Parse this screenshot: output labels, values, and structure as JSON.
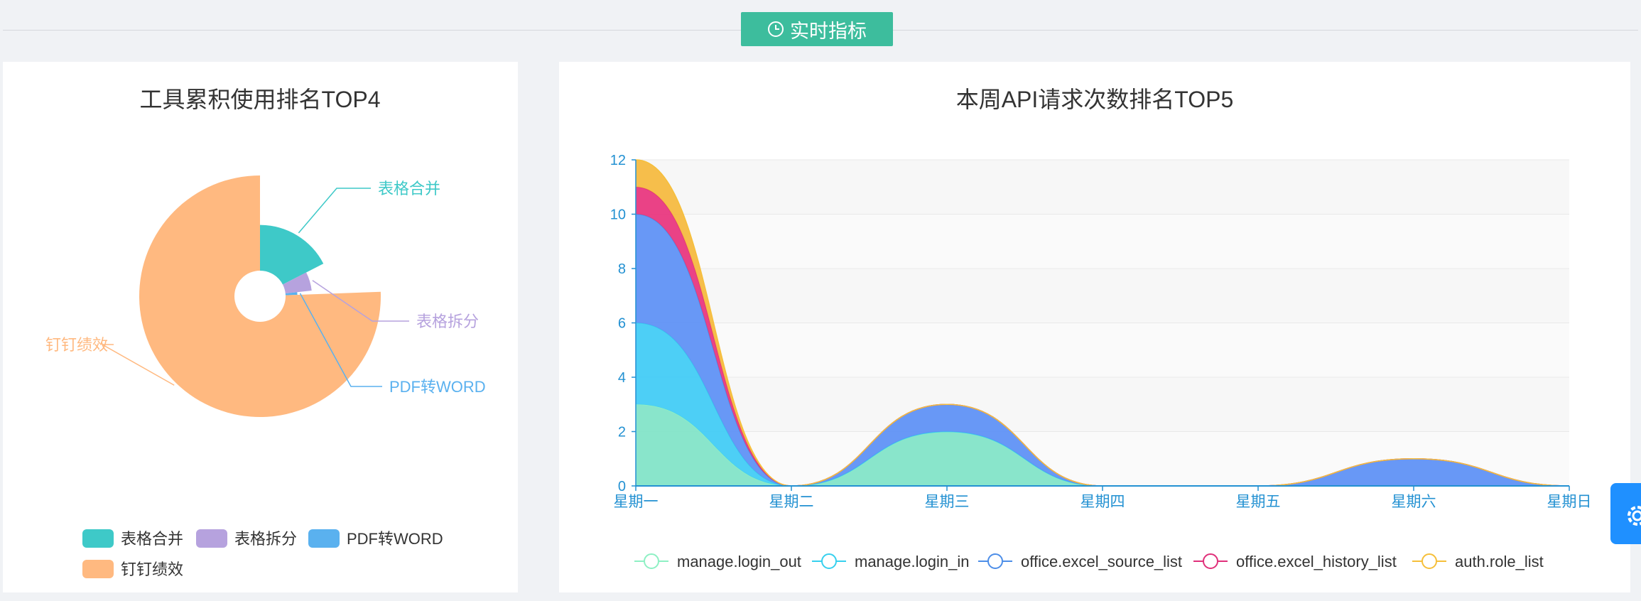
{
  "header": {
    "tag_label": "实时指标",
    "tag_color": "#3dbd9d",
    "tag_icon": "clock-icon"
  },
  "settings_icon": "gear-icon",
  "chart_data": [
    {
      "type": "pie",
      "variant": "rose",
      "title": "工具累积使用排名TOP4",
      "slices": [
        {
          "name": "表格合并",
          "value": 3,
          "color": "#3ec9c8"
        },
        {
          "name": "表格拆分",
          "value": 1,
          "color": "#b6a2de"
        },
        {
          "name": "PDF转WORD",
          "value": 0.2,
          "color": "#5ab1ef"
        },
        {
          "name": "钉钉绩效",
          "value": 13,
          "color": "#ffb980"
        }
      ],
      "legend": {
        "position": "bottom-center",
        "entries": [
          "表格合并",
          "表格拆分",
          "PDF转WORD",
          "钉钉绩效"
        ]
      }
    },
    {
      "type": "area",
      "stacked": true,
      "smooth": true,
      "title": "本周API请求次数排名TOP5",
      "categories": [
        "星期一",
        "星期二",
        "星期三",
        "星期四",
        "星期五",
        "星期六",
        "星期日"
      ],
      "yticks": [
        0,
        2,
        4,
        6,
        8,
        10,
        12
      ],
      "ylim": [
        0,
        12
      ],
      "grid": true,
      "series": [
        {
          "name": "manage.login_out",
          "values": [
            3,
            0,
            2,
            0,
            0,
            0,
            0
          ],
          "color": "#8ef0c4",
          "fill_color": "#7fe3c7"
        },
        {
          "name": "manage.login_in",
          "values": [
            3,
            0,
            0,
            0,
            0,
            0,
            0
          ],
          "color": "#37d0ee",
          "fill_color": "#3ecbf5"
        },
        {
          "name": "office.excel_source_list",
          "values": [
            4,
            0,
            1,
            0,
            0,
            1,
            0
          ],
          "color": "#4d8ee8",
          "fill_color": "#5b8ff5"
        },
        {
          "name": "office.excel_history_list",
          "values": [
            1,
            0,
            0,
            0,
            0,
            0,
            0
          ],
          "color": "#e0307a",
          "fill_color": "#e8327c"
        },
        {
          "name": "auth.role_list",
          "values": [
            1,
            0,
            0,
            0,
            0,
            0,
            0
          ],
          "color": "#f6bf3a",
          "fill_color": "#f5b93c"
        }
      ],
      "legend": {
        "position": "bottom-center"
      }
    }
  ]
}
